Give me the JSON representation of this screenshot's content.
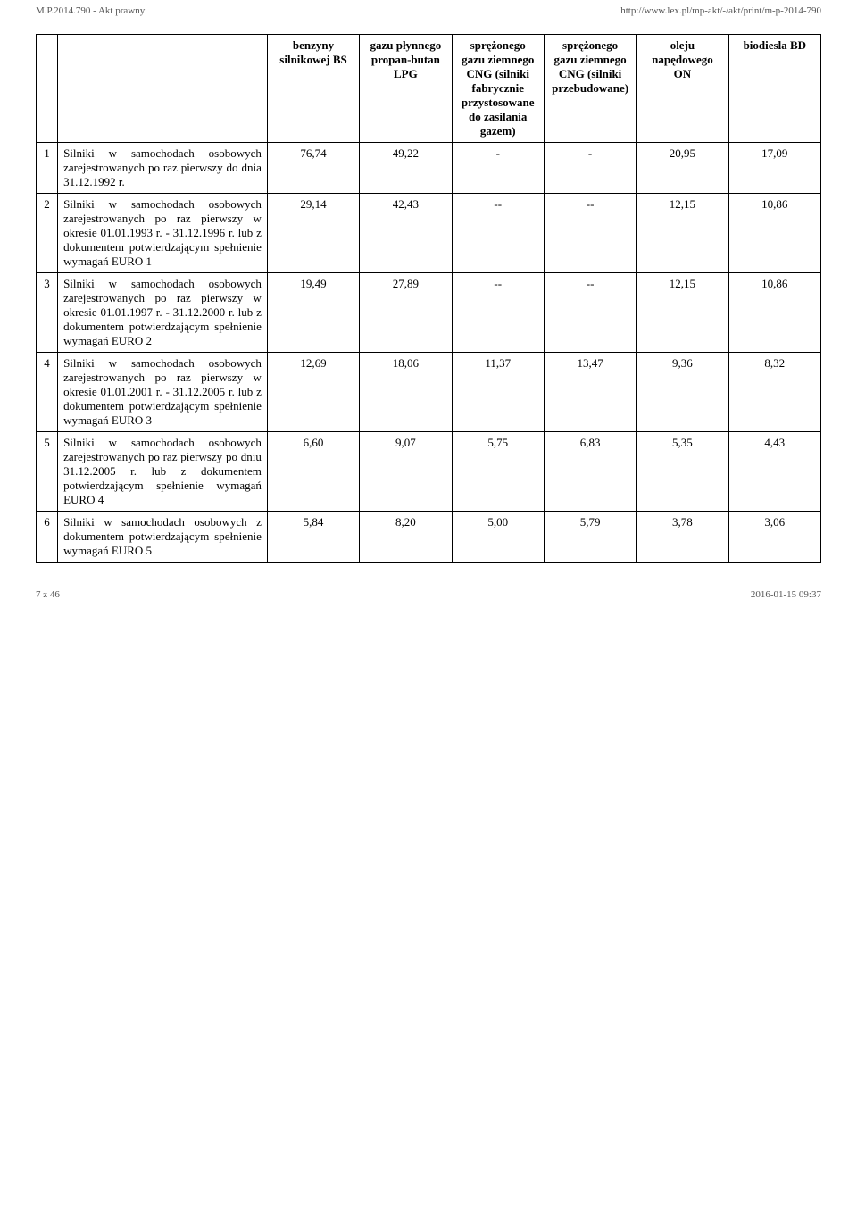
{
  "top_bar": {
    "left": "M.P.2014.790 - Akt prawny",
    "right": "http://www.lex.pl/mp-akt/-/akt/print/m-p-2014-790"
  },
  "table": {
    "columns": [
      "",
      "",
      "benzyny silnikowej BS",
      "gazu płynnego propan-butan LPG",
      "sprężonego gazu ziemnego CNG (silniki fabrycznie przystosowane do zasilania gazem)",
      "sprężonego gazu ziemnego CNG (silniki przebudowane)",
      "oleju napędowego ON",
      "biodiesla BD"
    ],
    "rows": [
      {
        "idx": "1",
        "desc": "Silniki w samochodach osobowych zarejestrowanych po raz pierwszy do dnia 31.12.1992 r.",
        "v": [
          "76,74",
          "49,22",
          "-",
          "-",
          "20,95",
          "17,09"
        ]
      },
      {
        "idx": "2",
        "desc": "Silniki w samochodach osobowych zarejestrowanych po raz pierwszy w okresie 01.01.1993 r. - 31.12.1996 r. lub z dokumentem potwierdzającym spełnienie wymagań EURO 1",
        "v": [
          "29,14",
          "42,43",
          "--",
          "--",
          "12,15",
          "10,86"
        ]
      },
      {
        "idx": "3",
        "desc": "Silniki w samochodach osobowych zarejestrowanych po raz pierwszy w okresie 01.01.1997 r. - 31.12.2000 r. lub z dokumentem potwierdzającym spełnienie wymagań EURO 2",
        "v": [
          "19,49",
          "27,89",
          "--",
          "--",
          "12,15",
          "10,86"
        ]
      },
      {
        "idx": "4",
        "desc": "Silniki w samochodach osobowych zarejestrowanych po raz pierwszy w okresie 01.01.2001 r. - 31.12.2005 r. lub z dokumentem potwierdzającym spełnienie wymagań EURO 3",
        "v": [
          "12,69",
          "18,06",
          "11,37",
          "13,47",
          "9,36",
          "8,32"
        ]
      },
      {
        "idx": "5",
        "desc": "Silniki w samochodach osobowych zarejestrowanych po raz pierwszy po dniu 31.12.2005 r. lub z dokumentem potwierdzającym spełnienie wymagań EURO 4",
        "v": [
          "6,60",
          "9,07",
          "5,75",
          "6,83",
          "5,35",
          "4,43"
        ]
      },
      {
        "idx": "6",
        "desc": "Silniki w samochodach osobowych z dokumentem potwierdzającym spełnienie wymagań EURO 5",
        "v": [
          "5,84",
          "8,20",
          "5,00",
          "5,79",
          "3,78",
          "3,06"
        ]
      }
    ]
  },
  "footer": {
    "left": "7 z 46",
    "right": "2016-01-15 09:37"
  }
}
